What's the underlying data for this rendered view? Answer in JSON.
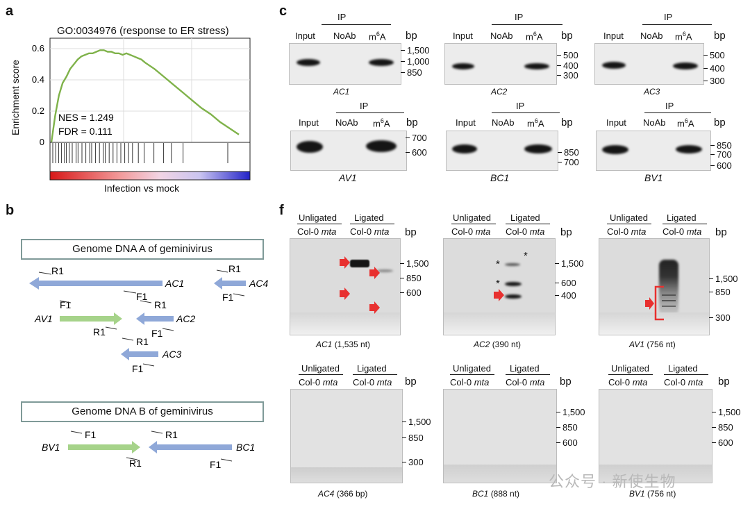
{
  "panel_a": {
    "label": "a",
    "title": "GO:0034976 (response to ER stress)",
    "ylabel": "Enrichment score",
    "yticks": [
      "0.6",
      "0.4",
      "0.2",
      "0"
    ],
    "nes": "NES = 1.249",
    "fdr": "FDR = 0.111",
    "xlabel": "Infection vs mock"
  },
  "chart_data": {
    "type": "line",
    "title": "GO:0034976 (response to ER stress)",
    "ylabel": "Enrichment score",
    "xlabel": "Infection vs mock",
    "ylim": [
      0,
      0.65
    ],
    "x": [
      0,
      0.02,
      0.04,
      0.06,
      0.08,
      0.1,
      0.12,
      0.14,
      0.16,
      0.18,
      0.2,
      0.22,
      0.24,
      0.26,
      0.28,
      0.3,
      0.32,
      0.34,
      0.36,
      0.38,
      0.4,
      0.42,
      0.44,
      0.46,
      0.48,
      0.5,
      0.55,
      0.6,
      0.65,
      0.7,
      0.75,
      0.8,
      0.85,
      0.9,
      0.95,
      1.0
    ],
    "series": [
      {
        "values": [
          0.0,
          0.17,
          0.3,
          0.38,
          0.42,
          0.47,
          0.5,
          0.53,
          0.55,
          0.56,
          0.57,
          0.57,
          0.58,
          0.59,
          0.59,
          0.58,
          0.58,
          0.57,
          0.57,
          0.56,
          0.57,
          0.56,
          0.55,
          0.54,
          0.53,
          0.51,
          0.47,
          0.42,
          0.37,
          0.32,
          0.27,
          0.22,
          0.18,
          0.13,
          0.09,
          0.05
        ]
      }
    ],
    "grid": true
  },
  "panel_b": {
    "label": "b",
    "genome_a": "Genome DNA A of geminivirus",
    "genome_b": "Genome DNA B of geminivirus",
    "genes": {
      "ac1": "AC1",
      "ac4": "AC4",
      "av1": "AV1",
      "ac2": "AC2",
      "ac3": "AC3",
      "bv1": "BV1",
      "bc1": "BC1"
    },
    "primers": {
      "r1": "R1",
      "f1": "F1"
    }
  },
  "panel_c": {
    "label": "c",
    "ip": "IP",
    "input": "Input",
    "noab": "NoAb",
    "m6a_base": "m",
    "m6a_sup": "6",
    "m6a_end": "A",
    "bp": "bp",
    "gels": [
      {
        "gene": "AC1",
        "ladder": [
          "1,500",
          "1,000",
          "850"
        ]
      },
      {
        "gene": "AC2",
        "ladder": [
          "500",
          "400",
          "300"
        ]
      },
      {
        "gene": "AC3",
        "ladder": [
          "500",
          "400",
          "300"
        ]
      },
      {
        "gene": "AV1",
        "ladder": [
          "700",
          "600"
        ]
      },
      {
        "gene": "BC1",
        "ladder": [
          "850",
          "700"
        ]
      },
      {
        "gene": "BV1",
        "ladder": [
          "850",
          "700",
          "600"
        ]
      }
    ]
  },
  "panel_f": {
    "label": "f",
    "unligated": "Unligated",
    "ligated": "Ligated",
    "col0": "Col-0",
    "mta": "mta",
    "bp": "bp",
    "gels": [
      {
        "gene": "AC1",
        "size": "(1,535 nt)",
        "ladder": [
          "1,500",
          "850",
          "600"
        ]
      },
      {
        "gene": "AC2",
        "size": "(390 nt)",
        "ladder": [
          "1,500",
          "600",
          "400"
        ]
      },
      {
        "gene": "AV1",
        "size": "(756 nt)",
        "ladder": [
          "1,500",
          "850",
          "300"
        ]
      },
      {
        "gene": "AC4",
        "size": "(366 bp)",
        "ladder": [
          "1,500",
          "850",
          "300"
        ]
      },
      {
        "gene": "BC1",
        "size": "(888 nt)",
        "ladder": [
          "1,500",
          "850",
          "600"
        ]
      },
      {
        "gene": "BV1",
        "size": "(756 nt)",
        "ladder": [
          "1,500",
          "850",
          "600"
        ]
      }
    ],
    "star": "*"
  },
  "watermark": "公众号 · 新使生物",
  "colors": {
    "curve": "#7fb24a",
    "blue_arrow": "#8fa8d8",
    "green_arrow": "#a6d38a",
    "red_arrow": "#e8302f",
    "box_border": "#7f9a98"
  }
}
